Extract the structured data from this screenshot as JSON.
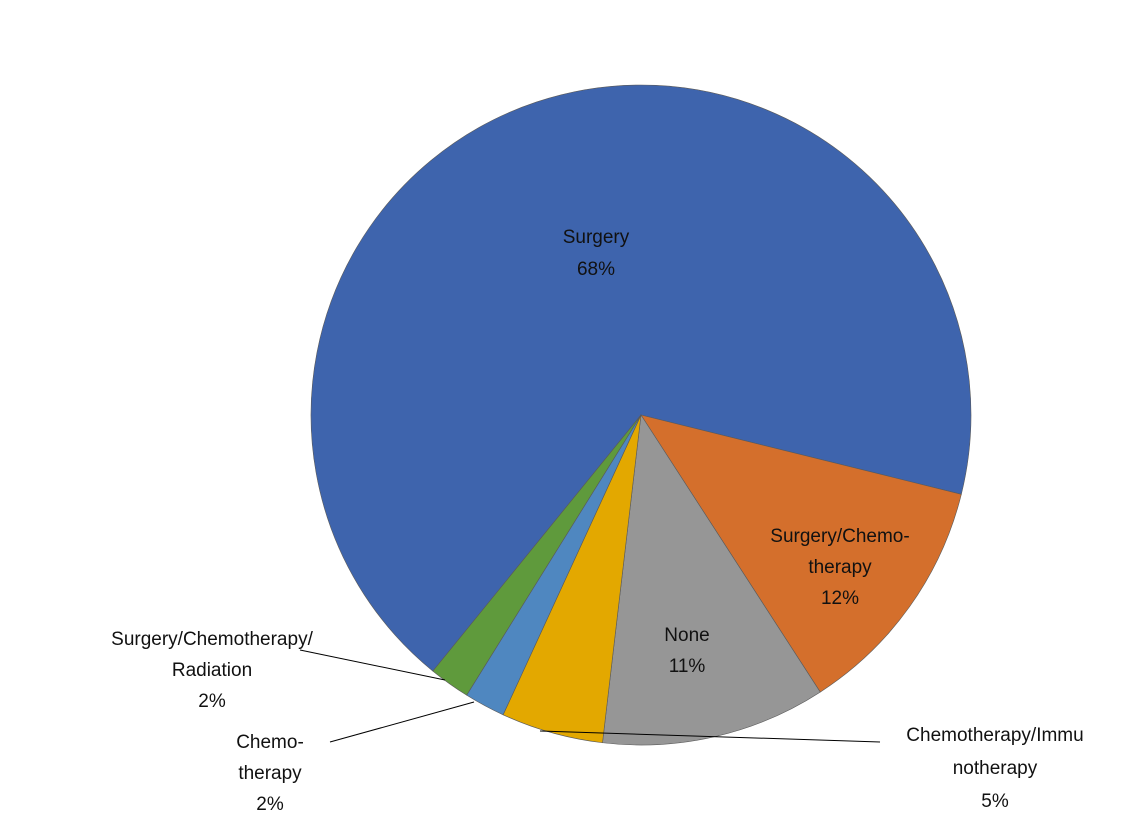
{
  "chart_data": {
    "type": "pie",
    "categories": [
      "Surgery",
      "Surgery/Chemo-\ntherapy",
      "None",
      "Chemotherapy/Immu\nnotherapy",
      "Chemo-\ntherapy",
      "Surgery/Chemotherapy/\nRadiation"
    ],
    "values": [
      68,
      12,
      11,
      5,
      2,
      2
    ],
    "value_labels": [
      "68%",
      "12%",
      "11%",
      "5%",
      "2%",
      "2%"
    ],
    "colors": [
      "#3e64ad",
      "#d46f2c",
      "#969696",
      "#e3a800",
      "#4f87c0",
      "#5f9a3c"
    ]
  }
}
